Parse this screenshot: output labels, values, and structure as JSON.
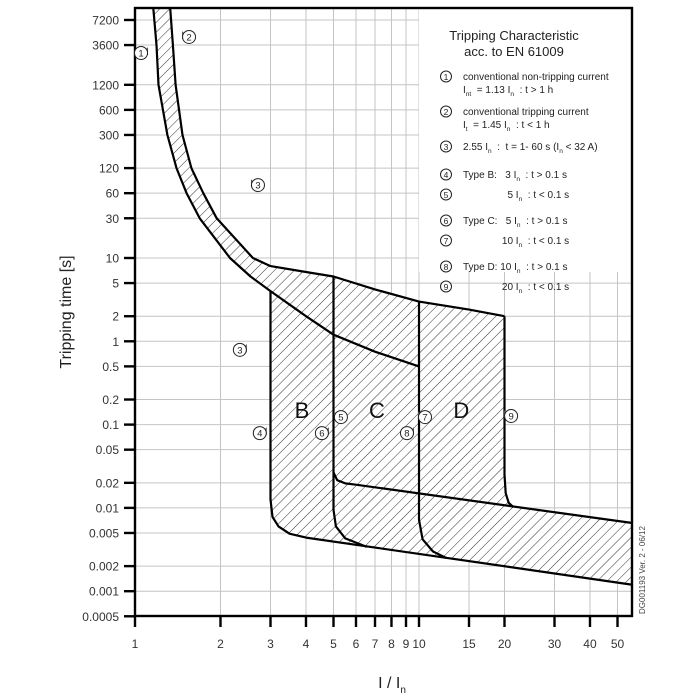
{
  "chart_data": {
    "type": "line",
    "title": "Tripping Characteristic",
    "subtitle": "acc. to EN 61009",
    "xlabel": "I / I",
    "xlabel_sub": "n",
    "ylabel": "Tripping time [s]",
    "xscale": "log",
    "yscale": "log",
    "xlim": [
      1,
      56
    ],
    "ylim": [
      0.0005,
      10000
    ],
    "grid": true,
    "x_ticks": [
      1,
      2,
      3,
      4,
      5,
      6,
      7,
      8,
      9,
      10,
      15,
      20,
      30,
      40,
      50
    ],
    "x_tick_labels": [
      "1",
      "2",
      "3",
      "4",
      "5",
      "6",
      "7",
      "8",
      "9",
      "10",
      "15",
      "20",
      "30",
      "40",
      "50"
    ],
    "y_ticks": [
      7200,
      3600,
      1200,
      600,
      300,
      120,
      60,
      30,
      10,
      5,
      2,
      1,
      0.5,
      0.2,
      0.1,
      0.05,
      0.02,
      0.01,
      0.005,
      0.002,
      0.001,
      0.0005
    ],
    "y_tick_labels": [
      "7200",
      "3600",
      "1200",
      "600",
      "300",
      "120",
      "60",
      "30",
      "10",
      "5",
      "2",
      "1",
      "0.5",
      "0.2",
      "0.1",
      "0.05",
      "0.02",
      "0.01",
      "0.005",
      "0.002",
      "0.001",
      "0.0005"
    ],
    "curves": [
      {
        "id": "thermal-lower",
        "points": [
          [
            1.16,
            10000
          ],
          [
            1.19,
            3600
          ],
          [
            1.21,
            1200
          ],
          [
            1.3,
            300
          ],
          [
            1.4,
            120
          ],
          [
            1.52,
            60
          ],
          [
            1.69,
            30
          ],
          [
            2.16,
            10
          ],
          [
            2.55,
            6
          ],
          [
            3,
            4
          ],
          [
            4,
            2
          ],
          [
            5,
            1.2
          ],
          [
            7,
            0.75
          ],
          [
            10,
            0.5
          ]
        ]
      },
      {
        "id": "thermal-upper",
        "points": [
          [
            1.33,
            10000
          ],
          [
            1.36,
            3600
          ],
          [
            1.39,
            1200
          ],
          [
            1.47,
            300
          ],
          [
            1.58,
            120
          ],
          [
            1.74,
            60
          ],
          [
            1.94,
            30
          ],
          [
            2.6,
            10
          ],
          [
            3,
            8
          ],
          [
            4,
            6.8
          ],
          [
            5,
            6
          ],
          [
            7,
            4.2
          ],
          [
            10,
            3
          ],
          [
            15,
            2.4
          ],
          [
            20,
            2
          ]
        ]
      },
      {
        "id": "type-b-left",
        "points": [
          [
            3,
            4
          ],
          [
            3,
            0.0126
          ],
          [
            3.05,
            0.0078
          ],
          [
            3.2,
            0.006
          ],
          [
            3.5,
            0.0049
          ],
          [
            4,
            0.0044
          ]
        ]
      },
      {
        "id": "lower-limit",
        "points": [
          [
            4,
            0.0044
          ],
          [
            56,
            0.0012
          ]
        ]
      },
      {
        "id": "x5-upper-branch",
        "points": [
          [
            5,
            6
          ],
          [
            5,
            0.0267
          ],
          [
            5.15,
            0.0215
          ],
          [
            5.5,
            0.0197
          ],
          [
            6,
            0.019
          ]
        ]
      },
      {
        "id": "x5-lower-branch",
        "points": [
          [
            5,
            0.0267
          ],
          [
            5,
            0.0095
          ],
          [
            5.1,
            0.006
          ],
          [
            5.5,
            0.0043
          ],
          [
            6.55,
            0.0034
          ]
        ]
      },
      {
        "id": "upper-limit",
        "points": [
          [
            6,
            0.019
          ],
          [
            56,
            0.0066
          ]
        ]
      },
      {
        "id": "x10-line",
        "points": [
          [
            10,
            3
          ],
          [
            10,
            0.0072
          ],
          [
            10.3,
            0.0042
          ],
          [
            11.2,
            0.003
          ],
          [
            12.5,
            0.0025
          ]
        ]
      },
      {
        "id": "x20-line",
        "points": [
          [
            20,
            2
          ],
          [
            20,
            0.025
          ],
          [
            20.2,
            0.015
          ],
          [
            20.7,
            0.0115
          ],
          [
            21.5,
            0.0102
          ]
        ]
      }
    ],
    "hatched_regions": [
      {
        "id": "thermal-band"
      },
      {
        "id": "magnetic-band"
      }
    ],
    "region_labels": [
      {
        "text": "B",
        "x": 3.87,
        "y": 0.146
      },
      {
        "text": "C",
        "x": 7.11,
        "y": 0.146
      },
      {
        "text": "D",
        "x": 14.1,
        "y": 0.146
      }
    ],
    "markers": [
      {
        "n": "1",
        "x": 1.05,
        "y": 2890
      },
      {
        "n": "2",
        "x": 1.55,
        "y": 4500
      },
      {
        "n": "3",
        "x": 2.71,
        "y": 75
      },
      {
        "n": "3",
        "x": 2.34,
        "y": 0.79
      },
      {
        "n": "4",
        "x": 2.75,
        "y": 0.079
      },
      {
        "n": "5",
        "x": 5.31,
        "y": 0.123
      },
      {
        "n": "6",
        "x": 4.55,
        "y": 0.079
      },
      {
        "n": "7",
        "x": 10.5,
        "y": 0.123
      },
      {
        "n": "8",
        "x": 9.07,
        "y": 0.079
      },
      {
        "n": "9",
        "x": 21.1,
        "y": 0.127
      }
    ]
  },
  "legend": {
    "title": "Tripping Characteristic",
    "subtitle": "acc. to EN 61009",
    "items": [
      {
        "n": "1",
        "lines": [
          [
            {
              "t": "conventional non-tripping current"
            }
          ],
          [
            {
              "t": "I"
            },
            {
              "t": "nt",
              "sub": true
            },
            {
              "t": "  = 1.13 I"
            },
            {
              "t": "n",
              "sub": true
            },
            {
              "t": "  : t > 1 h"
            }
          ]
        ]
      },
      {
        "n": "2",
        "lines": [
          [
            {
              "t": "conventional tripping current"
            }
          ],
          [
            {
              "t": "I"
            },
            {
              "t": "t",
              "sub": true
            },
            {
              "t": "  = 1.45 I"
            },
            {
              "t": "n",
              "sub": true
            },
            {
              "t": "  : t < 1 h"
            }
          ]
        ]
      },
      {
        "n": "3",
        "lines": [
          [
            {
              "t": "2.55 I"
            },
            {
              "t": "n",
              "sub": true
            },
            {
              "t": "  :  t = 1- 60 s (I"
            },
            {
              "t": "n",
              "sub": true
            },
            {
              "t": " < 32 A)"
            }
          ]
        ]
      },
      {
        "n": "4",
        "lines": [
          [
            {
              "t": "Type B:   3 I"
            },
            {
              "t": "n",
              "sub": true
            },
            {
              "t": "  : t > 0.1 s"
            }
          ]
        ]
      },
      {
        "n": "5",
        "lines": [
          [
            {
              "t": "                5 I"
            },
            {
              "t": "n",
              "sub": true
            },
            {
              "t": "  : t < 0.1 s"
            }
          ]
        ]
      },
      {
        "n": "6",
        "lines": [
          [
            {
              "t": "Type C:   5 I"
            },
            {
              "t": "n",
              "sub": true
            },
            {
              "t": "  : t > 0.1 s"
            }
          ]
        ]
      },
      {
        "n": "7",
        "lines": [
          [
            {
              "t": "              10 I"
            },
            {
              "t": "n",
              "sub": true
            },
            {
              "t": "  : t < 0.1 s"
            }
          ]
        ]
      },
      {
        "n": "8",
        "lines": [
          [
            {
              "t": "Type D: 10 I"
            },
            {
              "t": "n",
              "sub": true
            },
            {
              "t": "  : t > 0.1 s"
            }
          ]
        ]
      },
      {
        "n": "9",
        "lines": [
          [
            {
              "t": "              20 I"
            },
            {
              "t": "n",
              "sub": true
            },
            {
              "t": "  : t < 0.1 s"
            }
          ]
        ]
      }
    ]
  },
  "document_id": "DG001193 Ver. 2 - 06/12",
  "colors": {
    "line": "#000000",
    "grid": "#c4c4c4",
    "marker_arrow": "#555555"
  }
}
